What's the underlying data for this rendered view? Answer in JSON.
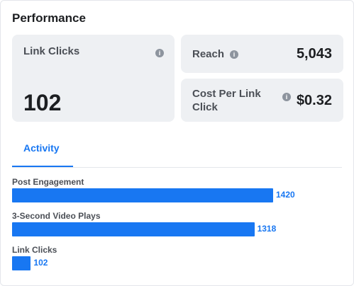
{
  "header": {
    "title": "Performance"
  },
  "metrics": {
    "link_clicks": {
      "label": "Link Clicks",
      "value": "102",
      "info_icon": "i"
    },
    "reach": {
      "label": "Reach",
      "value": "5,043",
      "info_icon": "i"
    },
    "cost_per_link_click": {
      "label_line1": "Cost Per Link",
      "label_line2": "Click",
      "value": "$0.32",
      "info_icon": "i"
    }
  },
  "tabs": [
    {
      "label": "Activity",
      "active": true
    }
  ],
  "colors": {
    "accent": "#1877f2",
    "card_bg": "#eef0f3"
  },
  "chart_data": {
    "type": "bar",
    "orientation": "horizontal",
    "categories": [
      "Post Engagement",
      "3-Second Video Plays",
      "Link Clicks"
    ],
    "values": [
      1420,
      1318,
      102
    ],
    "value_labels": [
      "1420",
      "1318",
      "102"
    ],
    "xlim": [
      0,
      1420
    ]
  }
}
